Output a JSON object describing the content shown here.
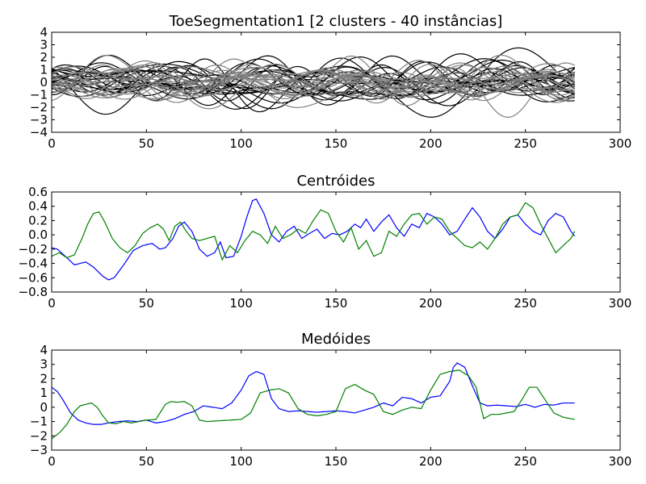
{
  "chart_data": [
    {
      "type": "line",
      "title": "ToeSegmentation1 [2 clusters - 40 instâncias]",
      "xlim": [
        0,
        300
      ],
      "ylim": [
        -4,
        4
      ],
      "xticks": [
        0,
        50,
        100,
        150,
        200,
        250,
        300
      ],
      "yticks": [
        -4,
        -3,
        -2,
        -1,
        0,
        1,
        2,
        3,
        4
      ],
      "n_points": 277,
      "groups": [
        {
          "color": "#000000",
          "count": 20,
          "amplitude": 1.1
        },
        {
          "color": "#808080",
          "count": 20,
          "amplitude": 1.0
        }
      ]
    },
    {
      "type": "line",
      "title": "Centróides",
      "xlim": [
        0,
        300
      ],
      "ylim": [
        -0.8,
        0.6
      ],
      "xticks": [
        0,
        50,
        100,
        150,
        200,
        250,
        300
      ],
      "yticks": [
        -0.8,
        -0.6,
        -0.4,
        -0.2,
        0.0,
        0.2,
        0.4,
        0.6
      ],
      "series": [
        {
          "color": "#0000ff",
          "x": [
            0,
            3,
            8,
            12,
            18,
            22,
            27,
            30,
            33,
            38,
            43,
            48,
            53,
            57,
            60,
            64,
            67,
            70,
            74,
            78,
            82,
            86,
            89,
            92,
            96,
            100,
            103,
            106,
            108,
            112,
            116,
            120,
            124,
            128,
            132,
            136,
            140,
            144,
            148,
            152,
            156,
            160,
            163,
            166,
            170,
            174,
            178,
            182,
            186,
            190,
            194,
            198,
            202,
            206,
            210,
            214,
            218,
            222,
            226,
            230,
            234,
            238,
            242,
            246,
            250,
            254,
            258,
            262,
            266,
            270,
            274,
            276
          ],
          "y": [
            -0.18,
            -0.2,
            -0.32,
            -0.42,
            -0.38,
            -0.45,
            -0.58,
            -0.63,
            -0.6,
            -0.42,
            -0.22,
            -0.15,
            -0.12,
            -0.2,
            -0.18,
            -0.05,
            0.12,
            0.18,
            0.05,
            -0.2,
            -0.3,
            -0.25,
            -0.1,
            -0.32,
            -0.3,
            -0.02,
            0.25,
            0.48,
            0.5,
            0.3,
            0.0,
            -0.1,
            0.05,
            0.12,
            -0.05,
            0.02,
            0.08,
            -0.05,
            0.02,
            0.0,
            0.05,
            0.15,
            0.1,
            0.22,
            0.05,
            0.18,
            0.28,
            0.1,
            -0.02,
            0.15,
            0.1,
            0.3,
            0.25,
            0.15,
            0.0,
            0.05,
            0.22,
            0.38,
            0.25,
            0.05,
            -0.05,
            0.08,
            0.25,
            0.28,
            0.15,
            0.05,
            0.0,
            0.2,
            0.3,
            0.25,
            0.05,
            -0.02
          ]
        },
        {
          "color": "#008000",
          "x": [
            0,
            4,
            8,
            12,
            16,
            19,
            22,
            25,
            28,
            32,
            36,
            40,
            44,
            48,
            52,
            56,
            59,
            62,
            65,
            68,
            71,
            74,
            78,
            82,
            86,
            90,
            94,
            98,
            102,
            106,
            110,
            114,
            118,
            122,
            126,
            130,
            134,
            138,
            142,
            146,
            150,
            154,
            158,
            162,
            166,
            170,
            174,
            178,
            182,
            186,
            190,
            194,
            198,
            202,
            206,
            210,
            214,
            218,
            222,
            226,
            230,
            234,
            238,
            242,
            246,
            250,
            254,
            258,
            262,
            266,
            270,
            274,
            276
          ],
          "y": [
            -0.3,
            -0.25,
            -0.32,
            -0.28,
            -0.05,
            0.15,
            0.3,
            0.32,
            0.18,
            -0.05,
            -0.18,
            -0.25,
            -0.15,
            0.02,
            0.1,
            0.15,
            0.08,
            -0.08,
            0.12,
            0.18,
            0.05,
            -0.05,
            -0.08,
            -0.05,
            -0.02,
            -0.35,
            -0.15,
            -0.25,
            -0.08,
            0.05,
            0.0,
            -0.12,
            0.12,
            -0.05,
            0.0,
            0.08,
            0.02,
            0.2,
            0.35,
            0.3,
            0.05,
            -0.1,
            0.1,
            -0.2,
            -0.08,
            -0.3,
            -0.25,
            0.05,
            -0.02,
            0.15,
            0.28,
            0.3,
            0.15,
            0.25,
            0.22,
            0.05,
            -0.05,
            -0.15,
            -0.18,
            -0.1,
            -0.2,
            -0.05,
            0.15,
            0.25,
            0.28,
            0.45,
            0.38,
            0.15,
            -0.05,
            -0.25,
            -0.15,
            -0.05,
            0.05
          ]
        }
      ]
    },
    {
      "type": "line",
      "title": "Medóides",
      "xlim": [
        0,
        300
      ],
      "ylim": [
        -3,
        4
      ],
      "xticks": [
        0,
        50,
        100,
        150,
        200,
        250,
        300
      ],
      "yticks": [
        -3,
        -2,
        -1,
        0,
        1,
        2,
        3,
        4
      ],
      "series": [
        {
          "color": "#0000ff",
          "x": [
            0,
            3,
            6,
            10,
            14,
            18,
            22,
            26,
            30,
            35,
            40,
            45,
            50,
            55,
            60,
            65,
            70,
            75,
            80,
            85,
            90,
            95,
            100,
            104,
            108,
            112,
            116,
            120,
            125,
            130,
            135,
            140,
            145,
            150,
            155,
            160,
            165,
            170,
            175,
            180,
            185,
            190,
            195,
            200,
            205,
            210,
            212,
            214,
            218,
            222,
            226,
            230,
            235,
            240,
            245,
            250,
            255,
            260,
            265,
            270,
            276
          ],
          "y": [
            1.4,
            1.1,
            0.5,
            -0.4,
            -0.9,
            -1.1,
            -1.2,
            -1.2,
            -1.1,
            -1.0,
            -0.95,
            -1.0,
            -0.9,
            -1.1,
            -1.0,
            -0.8,
            -0.5,
            -0.3,
            0.1,
            0.0,
            -0.1,
            0.3,
            1.2,
            2.2,
            2.5,
            2.3,
            0.6,
            -0.1,
            -0.3,
            -0.25,
            -0.3,
            -0.35,
            -0.3,
            -0.25,
            -0.3,
            -0.4,
            -0.2,
            0.0,
            0.3,
            0.1,
            0.7,
            0.6,
            0.3,
            0.7,
            0.8,
            1.8,
            2.8,
            3.1,
            2.8,
            1.5,
            0.3,
            0.1,
            0.15,
            0.1,
            0.05,
            0.2,
            0.0,
            0.2,
            0.15,
            0.3,
            0.3
          ]
        },
        {
          "color": "#008000",
          "x": [
            0,
            4,
            8,
            12,
            15,
            18,
            21,
            24,
            27,
            30,
            34,
            38,
            42,
            46,
            50,
            55,
            60,
            63,
            66,
            70,
            74,
            78,
            82,
            88,
            94,
            100,
            105,
            110,
            115,
            120,
            125,
            130,
            135,
            140,
            145,
            150,
            155,
            160,
            165,
            170,
            175,
            180,
            185,
            190,
            195,
            200,
            205,
            210,
            215,
            220,
            224,
            228,
            232,
            236,
            240,
            244,
            248,
            252,
            256,
            260,
            265,
            270,
            276
          ],
          "y": [
            -2.2,
            -1.8,
            -1.2,
            -0.3,
            0.1,
            0.2,
            0.3,
            0.0,
            -0.6,
            -1.1,
            -1.15,
            -1.0,
            -1.1,
            -1.0,
            -0.9,
            -0.85,
            0.2,
            0.4,
            0.35,
            0.4,
            0.1,
            -0.9,
            -1.0,
            -0.95,
            -0.9,
            -0.85,
            -0.4,
            1.0,
            1.2,
            1.3,
            1.0,
            -0.1,
            -0.5,
            -0.6,
            -0.5,
            -0.3,
            1.3,
            1.6,
            1.2,
            0.9,
            -0.3,
            -0.5,
            -0.2,
            0.0,
            -0.1,
            1.2,
            2.3,
            2.5,
            2.6,
            2.2,
            1.4,
            -0.8,
            -0.5,
            -0.5,
            -0.4,
            -0.3,
            0.5,
            1.4,
            1.4,
            0.6,
            -0.4,
            -0.7,
            -0.85
          ]
        }
      ]
    }
  ]
}
